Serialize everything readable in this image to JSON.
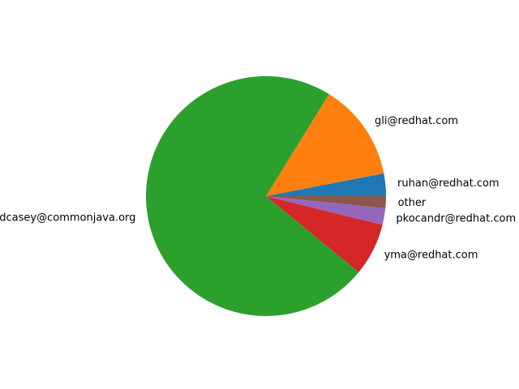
{
  "chart_data": {
    "type": "pie",
    "title": "",
    "start_angle_deg": 0,
    "direction": "counterclockwise",
    "slices": [
      {
        "label": "ruhan@redhat.com",
        "value": 3.0,
        "color": "#1f77b4"
      },
      {
        "label": "gli@redhat.com",
        "value": 13.0,
        "color": "#ff7f0e"
      },
      {
        "label": "jdcasey@commonjava.org",
        "value": 72.0,
        "color": "#2ca02c"
      },
      {
        "label": "yma@redhat.com",
        "value": 7.0,
        "color": "#d62728"
      },
      {
        "label": "pkocandr@redhat.com",
        "value": 2.2,
        "color": "#9467bd"
      },
      {
        "label": "other",
        "value": 1.6,
        "color": "#8c564b"
      }
    ]
  }
}
